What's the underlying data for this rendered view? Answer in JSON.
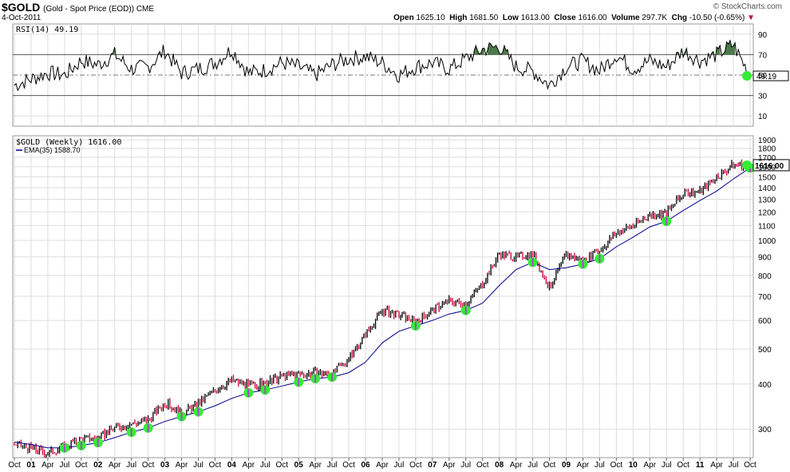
{
  "header": {
    "symbol": "$GOLD",
    "description": "(Gold - Spot Price (EOD)) CME",
    "date": "4-Oct-2011",
    "brand": "© StockCharts.com",
    "open_label": "Open",
    "open": "1625.10",
    "high_label": "High",
    "high": "1681.50",
    "low_label": "Low",
    "low": "1613.00",
    "close_label": "Close",
    "close": "1616.00",
    "volume_label": "Volume",
    "volume": "297.7K",
    "chg_label": "Chg",
    "chg": "-10.50 (-0.65%)"
  },
  "rsi_panel": {
    "label": "RSI(14) 49.19",
    "value_tag": "49.19",
    "ticks": [
      "90",
      "70",
      "50",
      "30",
      "10"
    ]
  },
  "price_panel": {
    "label": "$GOLD (Weekly) 1616.00",
    "ema_label": "EMA(35) 1588.70",
    "value_tag": "1616.00",
    "ticks": [
      "1900",
      "1800",
      "1700",
      "1600",
      "1500",
      "1400",
      "1300",
      "1200",
      "1100",
      "1000",
      "900",
      "800",
      "700",
      "600",
      "500",
      "400",
      "300"
    ]
  },
  "x_axis_ticks": [
    "Oct",
    "01",
    "Apr",
    "Jul",
    "Oct",
    "02",
    "Apr",
    "Jul",
    "Oct",
    "03",
    "Apr",
    "Jul",
    "Oct",
    "04",
    "Apr",
    "Jul",
    "Oct",
    "05",
    "Apr",
    "Jul",
    "Oct",
    "06",
    "Apr",
    "Jul",
    "Oct",
    "07",
    "Apr",
    "Jul",
    "Oct",
    "08",
    "Apr",
    "Jul",
    "Oct",
    "09",
    "Apr",
    "Jul",
    "Oct",
    "10",
    "Apr",
    "Jul",
    "Oct",
    "11",
    "Apr",
    "Jul",
    "Oct"
  ],
  "colors": {
    "up_bar": "#000000",
    "down_bar": "#cc0033",
    "ema": "#000088",
    "rsi_line": "#000000",
    "rsi_fill": "#4a7a4a",
    "signal_dot": "#33ee33",
    "signal_center": "#aa44cc",
    "grid": "#dddddd"
  },
  "chart_data": [
    {
      "type": "line",
      "name": "RSI(14)",
      "ylim": [
        0,
        100
      ],
      "reference_lines": [
        70,
        50,
        30
      ],
      "x": [
        "2000-10",
        "2001-01",
        "2001-04",
        "2001-07",
        "2001-10",
        "2002-01",
        "2002-04",
        "2002-07",
        "2002-10",
        "2003-01",
        "2003-04",
        "2003-07",
        "2003-10",
        "2004-01",
        "2004-04",
        "2004-07",
        "2004-10",
        "2005-01",
        "2005-04",
        "2005-07",
        "2005-10",
        "2006-01",
        "2006-04",
        "2006-07",
        "2006-10",
        "2007-01",
        "2007-04",
        "2007-07",
        "2007-10",
        "2008-01",
        "2008-04",
        "2008-07",
        "2008-10",
        "2009-01",
        "2009-04",
        "2009-07",
        "2009-10",
        "2010-01",
        "2010-04",
        "2010-07",
        "2010-10",
        "2011-01",
        "2011-04",
        "2011-07",
        "2011-10"
      ],
      "values": [
        40,
        46,
        52,
        50,
        64,
        60,
        70,
        56,
        58,
        74,
        52,
        56,
        62,
        75,
        52,
        55,
        62,
        58,
        50,
        60,
        66,
        68,
        62,
        50,
        58,
        62,
        56,
        66,
        75,
        78,
        58,
        54,
        40,
        58,
        64,
        54,
        70,
        56,
        64,
        58,
        74,
        64,
        70,
        80,
        49.19
      ]
    },
    {
      "type": "line",
      "name": "$GOLD (Weekly)",
      "log_scale": true,
      "ylim": [
        250,
        1950
      ],
      "x": [
        "2000-10",
        "2001-01",
        "2001-04",
        "2001-07",
        "2001-10",
        "2002-01",
        "2002-04",
        "2002-07",
        "2002-10",
        "2003-01",
        "2003-04",
        "2003-07",
        "2003-10",
        "2004-01",
        "2004-04",
        "2004-07",
        "2004-10",
        "2005-01",
        "2005-04",
        "2005-07",
        "2005-10",
        "2006-01",
        "2006-04",
        "2006-07",
        "2006-10",
        "2007-01",
        "2007-04",
        "2007-07",
        "2007-10",
        "2008-01",
        "2008-04",
        "2008-07",
        "2008-10",
        "2009-01",
        "2009-04",
        "2009-07",
        "2009-10",
        "2010-01",
        "2010-04",
        "2010-07",
        "2010-10",
        "2011-01",
        "2011-04",
        "2011-07",
        "2011-10"
      ],
      "series": [
        {
          "name": "$GOLD (Weekly)",
          "values": [
            272,
            265,
            258,
            268,
            283,
            282,
            303,
            310,
            318,
            356,
            330,
            352,
            385,
            410,
            395,
            400,
            420,
            425,
            430,
            425,
            470,
            550,
            640,
            620,
            595,
            640,
            680,
            665,
            760,
            920,
            900,
            920,
            740,
            910,
            880,
            940,
            1050,
            1100,
            1180,
            1190,
            1350,
            1370,
            1500,
            1620,
            1616
          ]
        },
        {
          "name": "EMA(35)",
          "values": [
            276,
            272,
            266,
            266,
            270,
            275,
            284,
            294,
            302,
            315,
            325,
            335,
            348,
            365,
            378,
            385,
            395,
            405,
            414,
            418,
            430,
            460,
            520,
            560,
            580,
            600,
            625,
            640,
            670,
            750,
            830,
            870,
            830,
            840,
            860,
            890,
            960,
            1020,
            1090,
            1130,
            1210,
            1290,
            1370,
            1480,
            1588.7
          ]
        }
      ]
    }
  ]
}
